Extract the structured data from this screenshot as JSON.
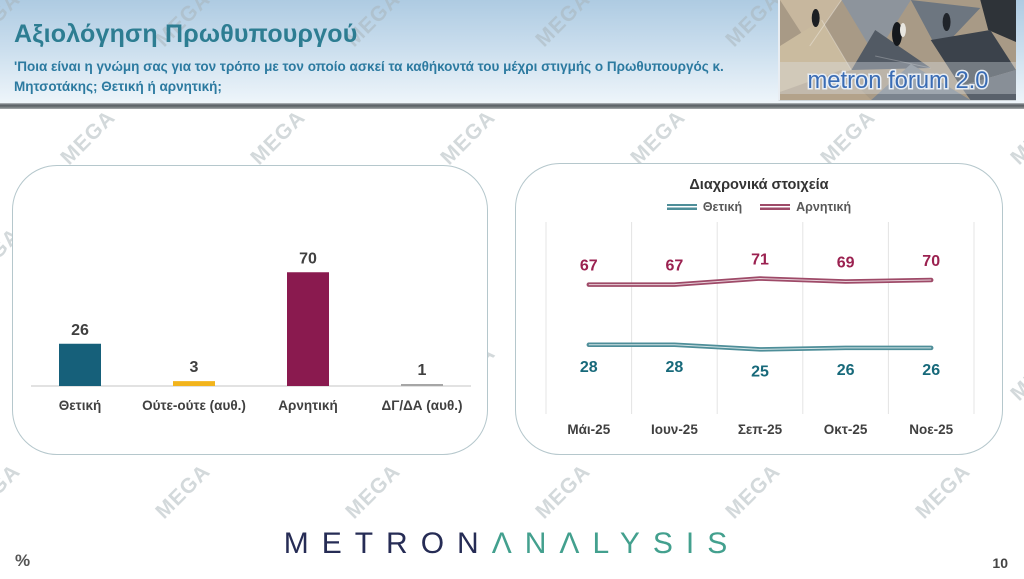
{
  "header": {
    "title": "Αξιολόγηση Πρωθυπουργού",
    "subtitle": "'Ποια είναι η γνώμη σας για τον τρόπο με τον οποίο ασκεί τα καθήκοντά του μέχρι στιγμής ο Πρωθυπουργός κ. Μητσοτάκης; Θετική ή αρνητική;",
    "logo_text": "metron forum 2.0"
  },
  "watermark": {
    "text": "MEGA"
  },
  "footer": {
    "percent_label": "%",
    "brand_primary": "METRON",
    "brand_secondary": "ΛNΛLYSIS",
    "page_number": "10"
  },
  "chart_data": [
    {
      "type": "bar",
      "title": "",
      "categories": [
        "Θετική",
        "Ούτε-ούτε (αυθ.)",
        "Αρνητική",
        "ΔΓ/ΔΑ (αυθ.)"
      ],
      "values": [
        26,
        3,
        70,
        1
      ],
      "colors": [
        "#16607a",
        "#f2b41c",
        "#8a1a4f",
        "#a6a6a6"
      ],
      "label_color": "#404040",
      "ylim": [
        0,
        80
      ],
      "grid": false,
      "legend_position": "none"
    },
    {
      "type": "line",
      "title": "Διαχρονικά στοιχεία",
      "categories": [
        "Μάι-25",
        "Ιουν-25",
        "Σεπ-25",
        "Οκτ-25",
        "Νοε-25"
      ],
      "series": [
        {
          "name": "Θετική",
          "values": [
            28,
            28,
            25,
            26,
            26
          ],
          "color": "#4e8e99",
          "label_color": "#17697a"
        },
        {
          "name": "Αρνητική",
          "values": [
            67,
            67,
            71,
            69,
            70
          ],
          "color": "#9e4a68",
          "label_color": "#9b2150"
        }
      ],
      "xlabel_color": "#404040",
      "ylim": [
        0,
        105
      ],
      "grid": "vertical",
      "legend_position": "top"
    }
  ]
}
